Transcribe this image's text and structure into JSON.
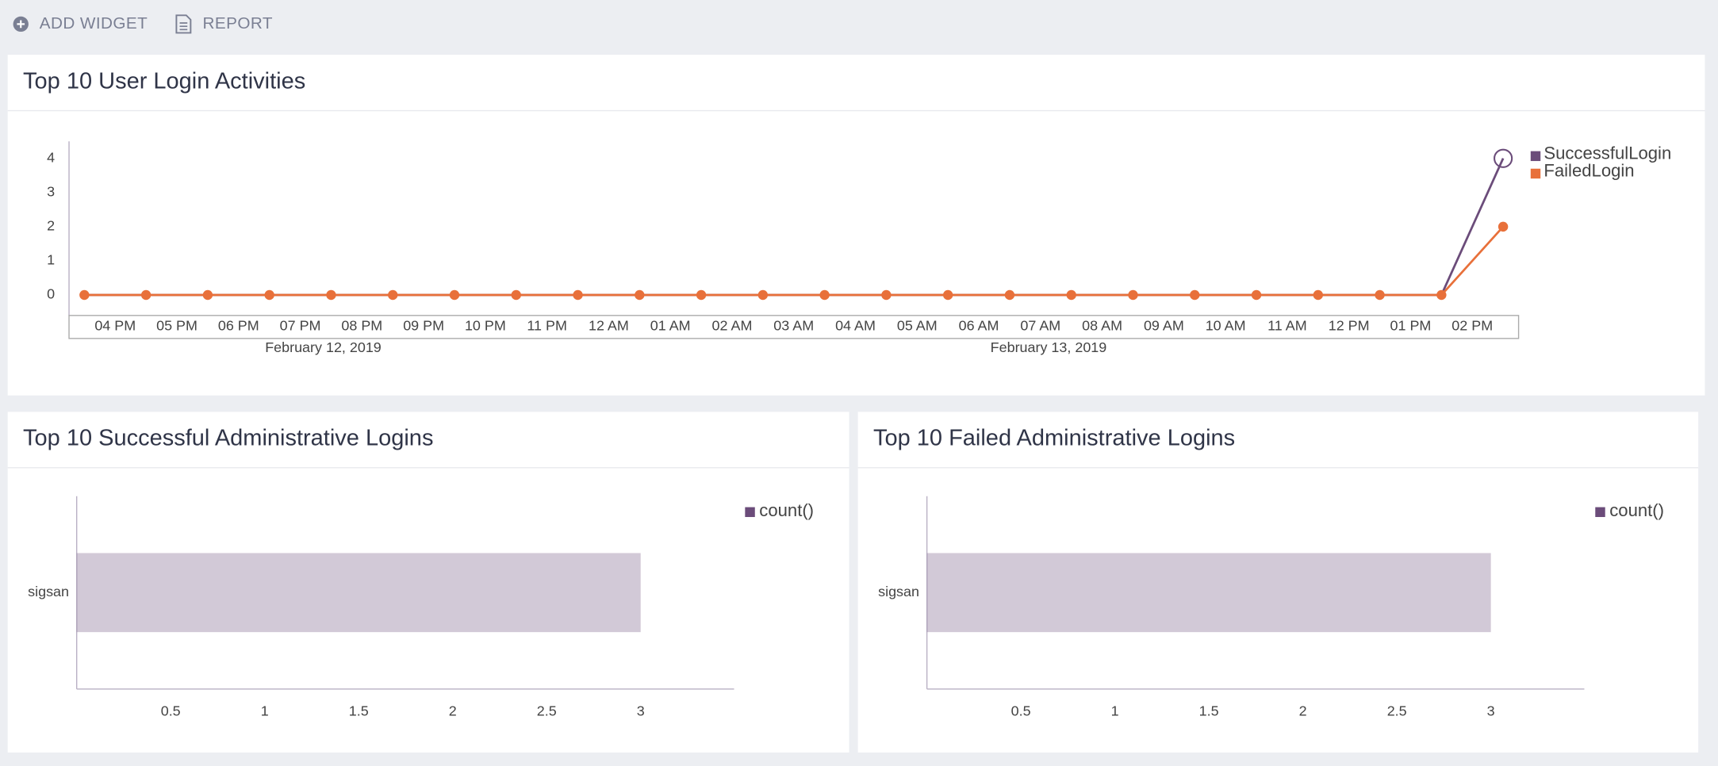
{
  "toolbar": {
    "buttons": [
      "ADD WIDGET",
      "REPORT"
    ]
  },
  "chart_data": [
    {
      "type": "line",
      "title": "Top 10 User Login Activities",
      "categories": [
        "04 PM",
        "05 PM",
        "06 PM",
        "07 PM",
        "08 PM",
        "09 PM",
        "10 PM",
        "11 PM",
        "12 AM",
        "01 AM",
        "02 AM",
        "03 AM",
        "04 AM",
        "05 AM",
        "06 AM",
        "07 AM",
        "08 AM",
        "09 AM",
        "10 AM",
        "11 AM",
        "12 PM",
        "01 PM",
        "02 PM",
        null
      ],
      "date_labels": [
        "February 12, 2019",
        "February 13, 2019"
      ],
      "series": [
        {
          "name": "SuccessfulLogin",
          "color": "#6b4c7a",
          "markers": false,
          "values": [
            0,
            0,
            0,
            0,
            0,
            0,
            0,
            0,
            0,
            0,
            0,
            0,
            0,
            0,
            0,
            0,
            0,
            0,
            0,
            0,
            0,
            0,
            0,
            4
          ]
        },
        {
          "name": "FailedLogin",
          "color": "#e8703a",
          "markers": true,
          "values": [
            0,
            0,
            0,
            0,
            0,
            0,
            0,
            0,
            0,
            0,
            0,
            0,
            0,
            0,
            0,
            0,
            0,
            0,
            0,
            0,
            0,
            0,
            0,
            2
          ]
        }
      ],
      "ylim": [
        -0.6,
        4.5
      ],
      "yticks": [
        0,
        1,
        2,
        3,
        4
      ],
      "legend": "top-right"
    },
    {
      "type": "hbar",
      "title": "Top 10 Successful Administrative Logins",
      "categories": [
        "sigsan"
      ],
      "series": [
        {
          "name": "count()",
          "color": "#6b4c7a",
          "values": [
            3
          ]
        }
      ],
      "xlim": [
        0,
        3.5
      ],
      "xticks": [
        0.5,
        1,
        1.5,
        2,
        2.5,
        3
      ],
      "legend": "top-right"
    },
    {
      "type": "hbar",
      "title": "Top 10 Failed Administrative Logins",
      "categories": [
        "sigsan"
      ],
      "series": [
        {
          "name": "count()",
          "color": "#6b4c7a",
          "values": [
            3
          ]
        }
      ],
      "xlim": [
        0,
        3.5
      ],
      "xticks": [
        0.5,
        1,
        1.5,
        2,
        2.5,
        3
      ],
      "legend": "top-right"
    }
  ]
}
